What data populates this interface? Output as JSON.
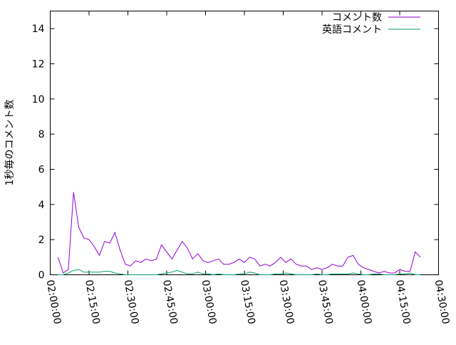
{
  "chart_data": {
    "type": "line",
    "title": "",
    "xlabel": "",
    "ylabel": "1秒毎のコメント数",
    "xlim": [
      "02:00:00",
      "04:30:00"
    ],
    "ylim": [
      0,
      15
    ],
    "x_ticks": [
      "02:00:00",
      "02:15:00",
      "02:30:00",
      "02:45:00",
      "03:00:00",
      "03:15:00",
      "03:30:00",
      "03:45:00",
      "04:00:00",
      "04:15:00",
      "04:30:00"
    ],
    "y_ticks": [
      "0",
      "2",
      "4",
      "6",
      "8",
      "10",
      "12",
      "14"
    ],
    "grid": false,
    "legend_placement": "top-right",
    "x": [
      "02:03:00",
      "02:05:00",
      "02:07:00",
      "02:09:00",
      "02:11:00",
      "02:13:00",
      "02:15:00",
      "02:17:00",
      "02:19:00",
      "02:21:00",
      "02:23:00",
      "02:25:00",
      "02:27:00",
      "02:29:00",
      "02:31:00",
      "02:33:00",
      "02:35:00",
      "02:37:00",
      "02:39:00",
      "02:41:00",
      "02:43:00",
      "02:45:00",
      "02:47:00",
      "02:49:00",
      "02:51:00",
      "02:53:00",
      "02:55:00",
      "02:57:00",
      "02:59:00",
      "03:01:00",
      "03:03:00",
      "03:05:00",
      "03:07:00",
      "03:09:00",
      "03:11:00",
      "03:13:00",
      "03:15:00",
      "03:17:00",
      "03:19:00",
      "03:21:00",
      "03:23:00",
      "03:25:00",
      "03:27:00",
      "03:29:00",
      "03:31:00",
      "03:33:00",
      "03:35:00",
      "03:37:00",
      "03:39:00",
      "03:41:00",
      "03:43:00",
      "03:45:00",
      "03:47:00",
      "03:49:00",
      "03:51:00",
      "03:53:00",
      "03:55:00",
      "03:57:00",
      "03:59:00",
      "04:01:00",
      "04:03:00",
      "04:05:00",
      "04:07:00",
      "04:09:00",
      "04:11:00",
      "04:13:00",
      "04:15:00",
      "04:17:00",
      "04:19:00",
      "04:21:00",
      "04:23:00"
    ],
    "series": [
      {
        "name": "コメント数",
        "color": "#9400d3",
        "values": [
          1.0,
          0.1,
          0.3,
          4.7,
          2.7,
          2.1,
          2.0,
          1.6,
          1.1,
          1.9,
          1.8,
          2.4,
          1.4,
          0.6,
          0.5,
          0.8,
          0.7,
          0.9,
          0.8,
          0.9,
          1.7,
          1.3,
          0.9,
          1.4,
          1.9,
          1.5,
          0.9,
          1.2,
          0.8,
          0.7,
          0.8,
          0.9,
          0.6,
          0.6,
          0.7,
          0.9,
          0.7,
          1.0,
          0.9,
          0.5,
          0.6,
          0.5,
          0.7,
          1.0,
          0.7,
          0.9,
          0.6,
          0.5,
          0.5,
          0.3,
          0.4,
          0.3,
          0.4,
          0.6,
          0.5,
          0.5,
          1.0,
          1.1,
          0.6,
          0.4,
          0.3,
          0.2,
          0.1,
          0.2,
          0.1,
          0.1,
          0.3,
          0.2,
          0.2,
          1.3,
          1.0
        ]
      },
      {
        "name": "英語コメント",
        "color": "#009e73",
        "values": [
          0,
          0,
          0.1,
          0.25,
          0.3,
          0.15,
          0.15,
          0.15,
          0.15,
          0.2,
          0.2,
          0.1,
          0.05,
          0,
          0,
          0,
          0,
          0,
          0,
          0,
          0.05,
          0.1,
          0.15,
          0.25,
          0.15,
          0.05,
          0.05,
          0.15,
          0.05,
          0.05,
          0,
          0.05,
          0,
          0,
          0,
          0.05,
          0.05,
          0.15,
          0.1,
          0,
          0,
          0,
          0.05,
          0.05,
          0.1,
          0.05,
          0,
          0,
          0,
          0,
          0.05,
          0,
          0,
          0.05,
          0.05,
          0.05,
          0.05,
          0.1,
          0.05,
          0,
          0,
          0.05,
          0.05,
          0,
          0,
          0,
          0.05,
          0.05,
          0.1,
          0,
          0
        ]
      }
    ]
  }
}
